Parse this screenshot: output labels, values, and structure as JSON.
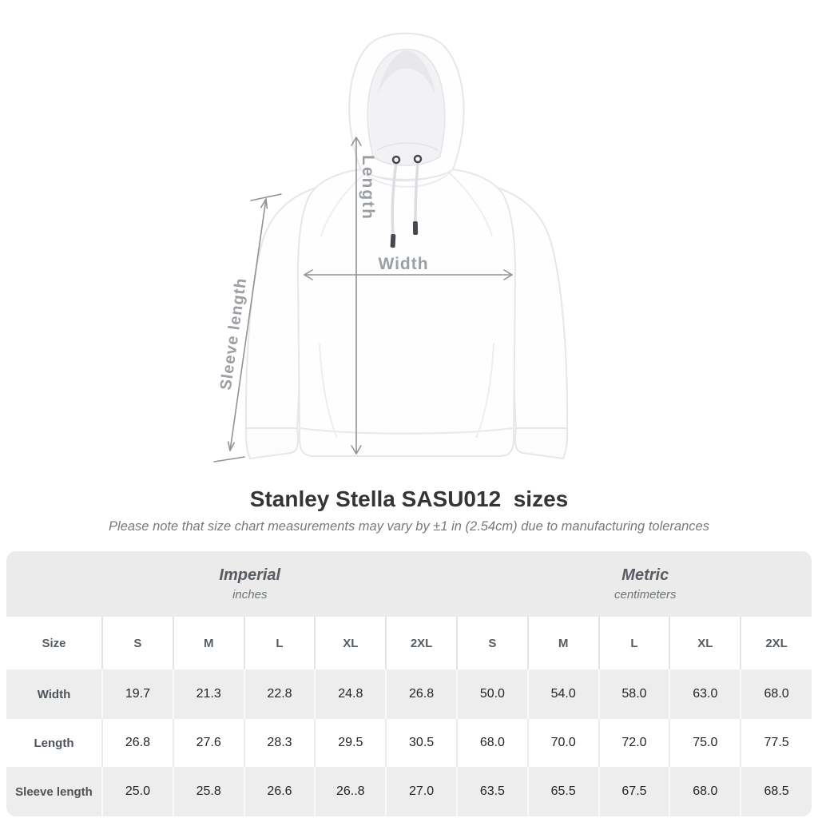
{
  "title": "Stanley Stella SASU012  sizes",
  "subtitle": "Please note that size chart measurements may vary by ±1 in (2.54cm) due to manufacturing tolerances",
  "diagram": {
    "product": "pullover hoodie, front view",
    "length_label": "Length",
    "width_label": "Width",
    "sleeve_label": "Sleeve length"
  },
  "colors": {
    "band_bg": "#ebebeb",
    "row_shade_bg": "#ededed",
    "title_text": "#333639",
    "note_text": "#77797c",
    "header_text": "#565c61",
    "value_text": "#1f2326",
    "diagram_label": "#9b9fa3",
    "arrow": "#8e9397"
  },
  "chart_data": {
    "type": "table",
    "title": "Stanley Stella SASU012  sizes",
    "note": "Size chart measurements may vary by ±1 in (2.54cm) due to manufacturing tolerances",
    "column_groups": [
      {
        "label": "Imperial",
        "unit": "inches",
        "columns": [
          "S",
          "M",
          "L",
          "XL",
          "2XL"
        ]
      },
      {
        "label": "Metric",
        "unit": "centimeters",
        "columns": [
          "S",
          "M",
          "L",
          "XL",
          "2XL"
        ]
      }
    ],
    "columns": [
      "Size",
      "S",
      "M",
      "L",
      "XL",
      "2XL",
      "S",
      "M",
      "L",
      "XL",
      "2XL"
    ],
    "rows": [
      {
        "label": "Width",
        "values": [
          "19.7",
          "21.3",
          "22.8",
          "24.8",
          "26.8",
          "50.0",
          "54.0",
          "58.0",
          "63.0",
          "68.0"
        ]
      },
      {
        "label": "Length",
        "values": [
          "26.8",
          "27.6",
          "28.3",
          "29.5",
          "30.5",
          "68.0",
          "70.0",
          "72.0",
          "75.0",
          "77.5"
        ]
      },
      {
        "label": "Sleeve length",
        "values": [
          "25.0",
          "25.8",
          "26.6",
          "26..8",
          "27.0",
          "63.5",
          "65.5",
          "67.5",
          "68.0",
          "68.5"
        ]
      }
    ]
  }
}
